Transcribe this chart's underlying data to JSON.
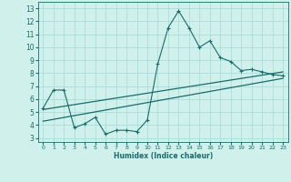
{
  "xlabel": "Humidex (Indice chaleur)",
  "bg_color": "#cff0eb",
  "grid_color": "#aaddda",
  "line_color": "#1a6b6b",
  "x_ticks": [
    0,
    1,
    2,
    3,
    4,
    5,
    6,
    7,
    8,
    9,
    10,
    11,
    12,
    13,
    14,
    15,
    16,
    17,
    18,
    19,
    20,
    21,
    22,
    23
  ],
  "y_ticks": [
    3,
    4,
    5,
    6,
    7,
    8,
    9,
    10,
    11,
    12,
    13
  ],
  "xlim": [
    -0.5,
    23.5
  ],
  "ylim": [
    2.7,
    13.5
  ],
  "curve1_x": [
    0,
    1,
    2,
    3,
    4,
    5,
    6,
    7,
    8,
    9,
    10,
    11,
    12,
    13,
    14,
    15,
    16,
    17,
    18,
    19,
    20,
    21,
    22,
    23
  ],
  "curve1_y": [
    5.3,
    6.7,
    6.7,
    3.8,
    4.1,
    4.6,
    3.3,
    3.6,
    3.6,
    3.5,
    4.4,
    8.7,
    11.5,
    12.8,
    11.5,
    10.0,
    10.5,
    9.2,
    8.9,
    8.2,
    8.3,
    8.1,
    7.9,
    7.8
  ],
  "curve2_x": [
    0,
    23
  ],
  "curve2_y": [
    5.2,
    8.1
  ],
  "curve3_x": [
    0,
    23
  ],
  "curve3_y": [
    4.3,
    7.6
  ]
}
